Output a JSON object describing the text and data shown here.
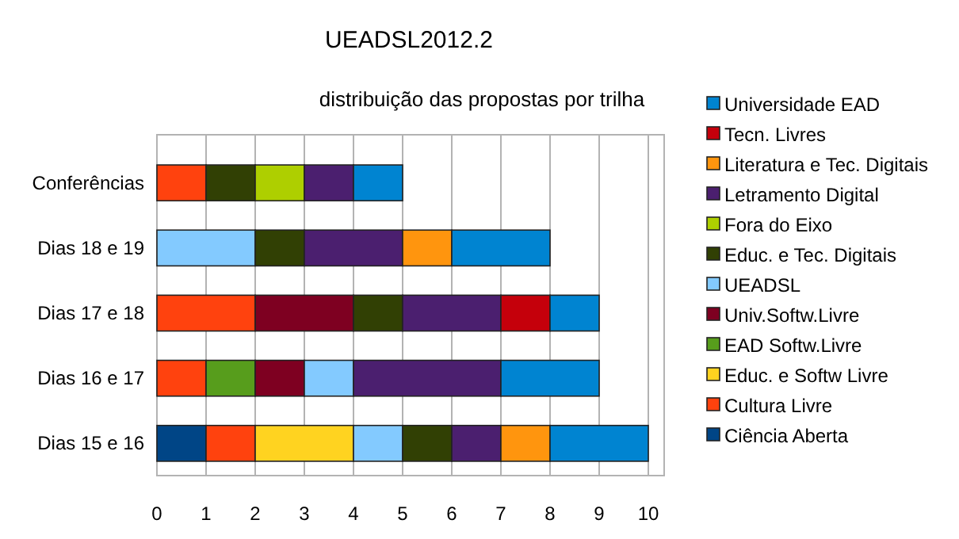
{
  "chart_data": {
    "type": "bar",
    "orientation": "horizontal",
    "stacked": true,
    "title": "UEADSL2012.2",
    "subtitle": "distribuição das propostas por trilha",
    "categories": [
      "Conferências",
      "Dias 18 e 19",
      "Dias 17 e 18",
      "Dias 16 e 17",
      "Dias 15 e 16"
    ],
    "xlim": [
      0,
      10
    ],
    "xticks": [
      0,
      1,
      2,
      3,
      4,
      5,
      6,
      7,
      8,
      9,
      10
    ],
    "grid": "x",
    "legend": "right",
    "series": [
      {
        "name": "Ciência Aberta",
        "color": "#004586",
        "values": [
          null,
          null,
          null,
          null,
          1
        ]
      },
      {
        "name": "Cultura Livre",
        "color": "#ff420e",
        "values": [
          1,
          null,
          2,
          1,
          1
        ]
      },
      {
        "name": "Educ. e Softw Livre",
        "color": "#ffd320",
        "values": [
          null,
          null,
          null,
          null,
          2
        ]
      },
      {
        "name": "EAD Softw.Livre",
        "color": "#579d1c",
        "values": [
          null,
          null,
          null,
          1,
          null
        ]
      },
      {
        "name": "Univ.Softw.Livre",
        "color": "#7e0021",
        "values": [
          null,
          null,
          2,
          1,
          null
        ]
      },
      {
        "name": "UEADSL",
        "color": "#83caff",
        "values": [
          null,
          2,
          null,
          1,
          1
        ]
      },
      {
        "name": "Educ. e Tec. Digitais",
        "color": "#314004",
        "values": [
          1,
          1,
          1,
          null,
          1
        ]
      },
      {
        "name": "Fora do Eixo",
        "color": "#aecf00",
        "values": [
          1,
          null,
          null,
          null,
          null
        ]
      },
      {
        "name": "Letramento Digital",
        "color": "#4b1f6f",
        "values": [
          1,
          2,
          2,
          3,
          1
        ]
      },
      {
        "name": "Literatura e Tec. Digitais",
        "color": "#ff950e",
        "values": [
          null,
          1,
          null,
          null,
          1
        ]
      },
      {
        "name": "Tecn. Livres",
        "color": "#c5000b",
        "values": [
          null,
          null,
          1,
          null,
          null
        ]
      },
      {
        "name": "Universidade EAD",
        "color": "#0084d1",
        "values": [
          1,
          2,
          1,
          2,
          2
        ]
      }
    ]
  }
}
